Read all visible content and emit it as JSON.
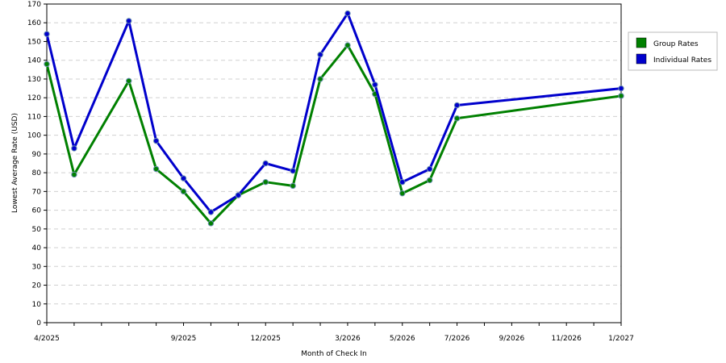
{
  "chart_data": {
    "type": "line",
    "xlabel": "Month of Check In",
    "ylabel": "Lowest Average Rate (USD)",
    "ylim": [
      0,
      170
    ],
    "y_ticks": [
      0,
      10,
      20,
      30,
      40,
      50,
      60,
      70,
      80,
      90,
      100,
      110,
      120,
      130,
      140,
      150,
      160,
      170
    ],
    "grid": true,
    "legend_position": "right",
    "months": [
      "4/2025",
      "5/2025",
      "6/2025",
      "7/2025",
      "8/2025",
      "9/2025",
      "10/2025",
      "11/2025",
      "12/2025",
      "1/2026",
      "2/2026",
      "3/2026",
      "4/2026",
      "5/2026",
      "6/2026",
      "7/2026",
      "8/2026",
      "9/2026",
      "10/2026",
      "11/2026",
      "12/2026",
      "1/2027"
    ],
    "x_tick_labels": [
      "4/2025",
      "9/2025",
      "12/2025",
      "3/2026",
      "5/2026",
      "7/2026",
      "9/2026",
      "11/2026",
      "1/2027"
    ],
    "series": [
      {
        "name": "Group Rates",
        "color": "#008000",
        "points": [
          {
            "x": "4/2025",
            "y": 138
          },
          {
            "x": "5/2025",
            "y": 79
          },
          {
            "x": "7/2025",
            "y": 129
          },
          {
            "x": "8/2025",
            "y": 82
          },
          {
            "x": "9/2025",
            "y": 70
          },
          {
            "x": "10/2025",
            "y": 53
          },
          {
            "x": "11/2025",
            "y": 68
          },
          {
            "x": "12/2025",
            "y": 75
          },
          {
            "x": "1/2026",
            "y": 73
          },
          {
            "x": "2/2026",
            "y": 130
          },
          {
            "x": "3/2026",
            "y": 148
          },
          {
            "x": "4/2026",
            "y": 122
          },
          {
            "x": "5/2026",
            "y": 69
          },
          {
            "x": "6/2026",
            "y": 76
          },
          {
            "x": "7/2026",
            "y": 109
          },
          {
            "x": "1/2027",
            "y": 121
          }
        ]
      },
      {
        "name": "Individual Rates",
        "color": "#0000cc",
        "points": [
          {
            "x": "4/2025",
            "y": 154
          },
          {
            "x": "5/2025",
            "y": 93
          },
          {
            "x": "7/2025",
            "y": 161
          },
          {
            "x": "8/2025",
            "y": 97
          },
          {
            "x": "9/2025",
            "y": 77
          },
          {
            "x": "10/2025",
            "y": 59
          },
          {
            "x": "11/2025",
            "y": 68
          },
          {
            "x": "12/2025",
            "y": 85
          },
          {
            "x": "1/2026",
            "y": 81
          },
          {
            "x": "2/2026",
            "y": 143
          },
          {
            "x": "3/2026",
            "y": 165
          },
          {
            "x": "4/2026",
            "y": 127
          },
          {
            "x": "5/2026",
            "y": 75
          },
          {
            "x": "6/2026",
            "y": 82
          },
          {
            "x": "7/2026",
            "y": 116
          },
          {
            "x": "1/2027",
            "y": 125
          }
        ]
      }
    ]
  }
}
